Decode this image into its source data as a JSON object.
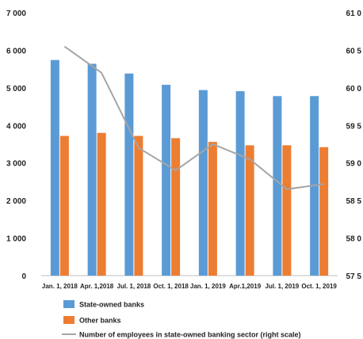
{
  "chart_data": {
    "type": "bar",
    "categories": [
      "Jan. 1, 2018",
      "Apr. 1,2018",
      "Jul. 1, 2018",
      "Oct. 1, 2018",
      "Jan. 1, 2019",
      "Apr.1,2019",
      "Jul. 1, 2019",
      "Oct. 1, 2019"
    ],
    "series": [
      {
        "name": "State-owned banks",
        "type": "bar",
        "axis": "left",
        "color": "#5B9BD5",
        "values": [
          5740,
          5640,
          5380,
          5080,
          4940,
          4910,
          4780,
          4780
        ]
      },
      {
        "name": "Other banks",
        "type": "bar",
        "axis": "left",
        "color": "#ED7D31",
        "values": [
          3720,
          3800,
          3720,
          3660,
          3560,
          3470,
          3470,
          3420
        ]
      },
      {
        "name": "Number of employees in state-owned banking sector  (right scale)",
        "type": "line",
        "axis": "right",
        "color": "#A5A5A5",
        "values": [
          60.55,
          60.2,
          59.2,
          58.9,
          59.25,
          59.05,
          58.65,
          58.72
        ]
      }
    ],
    "y_left": {
      "min": 0,
      "max": 7000,
      "ticks": [
        "0",
        "1 000",
        "2 000",
        "3 000",
        "4 000",
        "5 000",
        "6 000",
        "7 000"
      ]
    },
    "y_right": {
      "min": 57.5,
      "max": 61.0,
      "ticks": [
        "57 5",
        "58 0",
        "58 5",
        "59 0",
        "59 5",
        "60 0",
        "60 5",
        "61 0"
      ]
    },
    "grid": false,
    "legend_position": "bottom"
  }
}
